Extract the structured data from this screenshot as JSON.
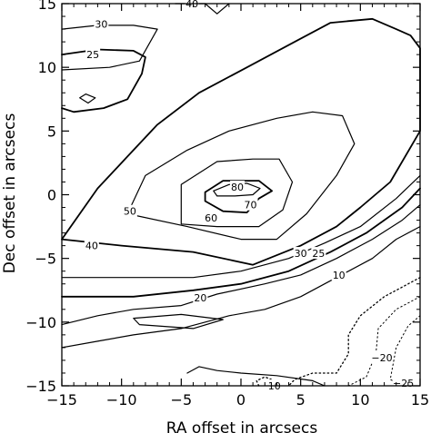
{
  "chart_data": {
    "type": "contour",
    "title": "",
    "xlabel": "RA offset in arcsecs",
    "ylabel": "Dec offset in arcsecs",
    "xlim": [
      -15,
      15
    ],
    "ylim": [
      -15,
      15
    ],
    "xticks": [
      -15,
      -10,
      -5,
      0,
      5,
      10,
      15
    ],
    "yticks": [
      -15,
      -10,
      -5,
      0,
      5,
      10,
      15
    ],
    "xtick_labels": [
      "−15",
      "−10",
      "−5",
      "0",
      "5",
      "10",
      "15"
    ],
    "ytick_labels": [
      "−15",
      "−10",
      "−5",
      "0",
      "5",
      "10",
      "15"
    ],
    "grid": false,
    "contours": [
      {
        "level": 80,
        "label": "80",
        "style": "solid",
        "width": 1.2,
        "points": [
          [
            -2.3,
            0.3
          ],
          [
            -1.0,
            0.8
          ],
          [
            0.5,
            0.9
          ],
          [
            1.6,
            0.5
          ],
          [
            1.0,
            0.0
          ],
          [
            -0.5,
            -0.1
          ],
          [
            -2.0,
            -0.1
          ],
          [
            -2.3,
            0.3
          ]
        ],
        "label_pos": [
          -0.3,
          0.6
        ]
      },
      {
        "level": 70,
        "label": "70",
        "style": "solid",
        "width": 1.8,
        "points": [
          [
            -3.0,
            0.2
          ],
          [
            -1.5,
            1.1
          ],
          [
            1.5,
            1.1
          ],
          [
            2.6,
            0.3
          ],
          [
            1.5,
            -0.3
          ],
          [
            0.5,
            -1.4
          ],
          [
            -1.5,
            -1.3
          ],
          [
            -3.0,
            -0.5
          ],
          [
            -3.0,
            0.2
          ]
        ],
        "label_pos": [
          0.8,
          -0.8
        ]
      },
      {
        "level": 60,
        "label": "60",
        "style": "solid",
        "width": 1.2,
        "points": [
          [
            -5.0,
            -2.3
          ],
          [
            -5.0,
            0.8
          ],
          [
            -2.0,
            2.6
          ],
          [
            1.0,
            2.8
          ],
          [
            3.2,
            2.8
          ],
          [
            4.3,
            1.0
          ],
          [
            3.5,
            -1.2
          ],
          [
            1.5,
            -2.5
          ],
          [
            -2.0,
            -2.5
          ],
          [
            -5.0,
            -2.3
          ]
        ],
        "label_pos": [
          -2.5,
          -1.8
        ]
      },
      {
        "level": 50,
        "label": "50",
        "style": "solid",
        "width": 1.2,
        "points": [
          [
            -9.5,
            -1.5
          ],
          [
            -8.0,
            1.5
          ],
          [
            -4.5,
            3.5
          ],
          [
            -1.0,
            5.0
          ],
          [
            3.0,
            6.0
          ],
          [
            6.0,
            6.5
          ],
          [
            8.5,
            6.2
          ],
          [
            9.5,
            4.0
          ],
          [
            8.0,
            1.5
          ],
          [
            5.5,
            -1.5
          ],
          [
            3.0,
            -3.5
          ],
          [
            0.0,
            -3.5
          ],
          [
            -4.5,
            -2.5
          ],
          [
            -9.5,
            -1.5
          ]
        ],
        "label_pos": [
          -9.3,
          -1.3
        ]
      },
      {
        "level": 40,
        "label": "40",
        "style": "solid",
        "width": 1.8,
        "points": [
          [
            -15.0,
            -3.5
          ],
          [
            -12.0,
            0.5
          ],
          [
            -9.5,
            3.0
          ],
          [
            -7.0,
            5.5
          ],
          [
            -3.5,
            8.0
          ],
          [
            0.5,
            10.0
          ],
          [
            4.5,
            12.0
          ],
          [
            7.5,
            13.5
          ],
          [
            11.0,
            13.8
          ],
          [
            13.0,
            13.0
          ],
          [
            14.2,
            12.5
          ],
          [
            15.0,
            11.5
          ],
          [
            15.0,
            5.0
          ],
          [
            12.5,
            1.0
          ],
          [
            10.0,
            -1.0
          ],
          [
            8.0,
            -2.5
          ],
          [
            5.0,
            -4.0
          ],
          [
            1.0,
            -5.5
          ],
          [
            -4.0,
            -4.5
          ],
          [
            -10.0,
            -4.0
          ],
          [
            -15.0,
            -3.5
          ]
        ],
        "label_pos": [
          -12.5,
          -4.0
        ]
      },
      {
        "level": 30,
        "label": "30",
        "style": "solid",
        "width": 1.2,
        "points": [
          [
            -15.0,
            -6.5
          ],
          [
            -10.0,
            -6.5
          ],
          [
            -4.0,
            -6.5
          ],
          [
            0.0,
            -6.0
          ],
          [
            4.0,
            -5.0
          ],
          [
            7.0,
            -3.8
          ],
          [
            10.0,
            -2.5
          ],
          [
            13.0,
            -0.3
          ],
          [
            15.0,
            1.5
          ]
        ],
        "label_pos": [
          5.0,
          -4.6
        ]
      },
      {
        "level": 25,
        "label": "25",
        "style": "solid",
        "width": 1.8,
        "points": [
          [
            -15.0,
            -8.0
          ],
          [
            -9.0,
            -8.0
          ],
          [
            -4.0,
            -7.5
          ],
          [
            0.0,
            -7.0
          ],
          [
            4.0,
            -6.0
          ],
          [
            7.5,
            -4.5
          ],
          [
            10.5,
            -3.0
          ],
          [
            13.5,
            -1.0
          ],
          [
            15.0,
            0.5
          ]
        ],
        "label_pos": [
          6.5,
          -4.6
        ]
      },
      {
        "level": 20,
        "label": "20",
        "style": "solid",
        "width": 1.2,
        "points": [
          [
            -15.0,
            -10.2
          ],
          [
            -12.0,
            -9.5
          ],
          [
            -9.0,
            -9.0
          ],
          [
            -5.0,
            -8.7
          ],
          [
            -2.0,
            -7.8
          ],
          [
            2.0,
            -7.0
          ],
          [
            5.0,
            -6.3
          ],
          [
            8.0,
            -5.0
          ],
          [
            11.0,
            -3.5
          ],
          [
            13.5,
            -2.0
          ],
          [
            15.0,
            -0.8
          ]
        ],
        "label_pos": [
          -3.4,
          -8.1
        ]
      },
      {
        "level": 10,
        "label": "10",
        "style": "solid",
        "width": 1.2,
        "points": [
          [
            -15.0,
            -12.0
          ],
          [
            -12.0,
            -11.5
          ],
          [
            -9.0,
            -11.0
          ],
          [
            -5.0,
            -10.5
          ],
          [
            -1.0,
            -9.5
          ],
          [
            2.0,
            -9.0
          ],
          [
            5.0,
            -8.0
          ],
          [
            8.0,
            -6.5
          ],
          [
            11.0,
            -5.0
          ],
          [
            13.0,
            -3.5
          ],
          [
            15.0,
            -2.5
          ]
        ],
        "label_pos": [
          8.2,
          -6.3
        ]
      },
      {
        "level": 10,
        "label": "10",
        "style": "solid",
        "width": 1.2,
        "points": [
          [
            -4.5,
            -14.0
          ],
          [
            -3.5,
            -13.5
          ],
          [
            -2.0,
            -13.8
          ],
          [
            0.0,
            -14.0
          ],
          [
            3.0,
            -14.2
          ],
          [
            6.0,
            -14.6
          ],
          [
            7.0,
            -15.0
          ]
        ],
        "label_pos": [
          2.8,
          -15.0
        ]
      },
      {
        "level": 30,
        "label": "30",
        "style": "solid",
        "width": 1.2,
        "points": [
          [
            -15.0,
            13.0
          ],
          [
            -12.0,
            13.3
          ],
          [
            -9.0,
            13.3
          ],
          [
            -7.0,
            13.0
          ],
          [
            -8.5,
            10.5
          ],
          [
            -11.0,
            10.0
          ],
          [
            -15.0,
            9.8
          ]
        ],
        "label_pos": [
          -11.7,
          13.4
        ]
      },
      {
        "level": 25,
        "label": "25",
        "style": "solid",
        "width": 1.8,
        "points": [
          [
            -15.0,
            11.0
          ],
          [
            -12.0,
            11.4
          ],
          [
            -9.0,
            11.3
          ],
          [
            -8.0,
            10.8
          ],
          [
            -8.3,
            9.5
          ],
          [
            -9.5,
            7.5
          ],
          [
            -11.5,
            6.8
          ],
          [
            -14.0,
            6.5
          ],
          [
            -15.0,
            6.8
          ]
        ],
        "label_pos": [
          -12.4,
          11.0
        ]
      },
      {
        "level": 40,
        "label": "40",
        "style": "solid",
        "width": 1.2,
        "points": [
          [
            -5.5,
            15.0
          ],
          [
            -3.0,
            15.0
          ],
          [
            -2.0,
            14.2
          ],
          [
            -1.0,
            15.0
          ]
        ],
        "label_pos": [
          -4.1,
          15.0
        ]
      },
      {
        "level": null,
        "label": "",
        "style": "solid",
        "width": 1.2,
        "points": [
          [
            -13.5,
            7.6
          ],
          [
            -13.0,
            7.9
          ],
          [
            -12.2,
            7.6
          ],
          [
            -12.8,
            7.2
          ],
          [
            -13.5,
            7.6
          ]
        ],
        "label_pos": null
      },
      {
        "level": null,
        "label": "",
        "style": "solid",
        "width": 1.2,
        "points": [
          [
            -9.0,
            -9.7
          ],
          [
            -5.0,
            -9.4
          ],
          [
            -1.5,
            -9.8
          ],
          [
            -4.0,
            -10.5
          ],
          [
            -8.5,
            -10.2
          ],
          [
            -9.0,
            -9.7
          ]
        ],
        "label_pos": null
      },
      {
        "level": -10,
        "label": "",
        "style": "dotted",
        "width": 1.3,
        "points": [
          [
            15.0,
            -6.5
          ],
          [
            12.0,
            -8.0
          ],
          [
            10.0,
            -9.5
          ],
          [
            9.0,
            -11.0
          ],
          [
            9.0,
            -12.5
          ],
          [
            8.0,
            -14.0
          ],
          [
            6.0,
            -14.0
          ],
          [
            4.5,
            -14.5
          ],
          [
            4.0,
            -15.0
          ]
        ],
        "label_pos": null
      },
      {
        "level": -10,
        "label": "",
        "style": "dotted",
        "width": 1.3,
        "points": [
          [
            1.5,
            -15.0
          ],
          [
            1.3,
            -14.6
          ],
          [
            2.0,
            -14.3
          ],
          [
            2.8,
            -14.6
          ]
        ],
        "label_pos": null
      },
      {
        "level": -20,
        "label": "−20",
        "style": "dotted",
        "width": 1.0,
        "points": [
          [
            15.0,
            -8.0
          ],
          [
            13.0,
            -9.0
          ],
          [
            11.5,
            -10.5
          ],
          [
            11.3,
            -12.5
          ],
          [
            10.5,
            -14.3
          ],
          [
            9.0,
            -15.0
          ]
        ],
        "label_pos": [
          11.8,
          -12.8
        ]
      },
      {
        "level": -25,
        "label": "−25",
        "style": "dotted",
        "width": 1.0,
        "points": [
          [
            15.0,
            -9.5
          ],
          [
            14.0,
            -10.3
          ],
          [
            13.0,
            -12.0
          ],
          [
            12.5,
            -14.5
          ],
          [
            13.5,
            -15.0
          ]
        ],
        "label_pos": [
          13.6,
          -14.8
        ]
      }
    ]
  }
}
